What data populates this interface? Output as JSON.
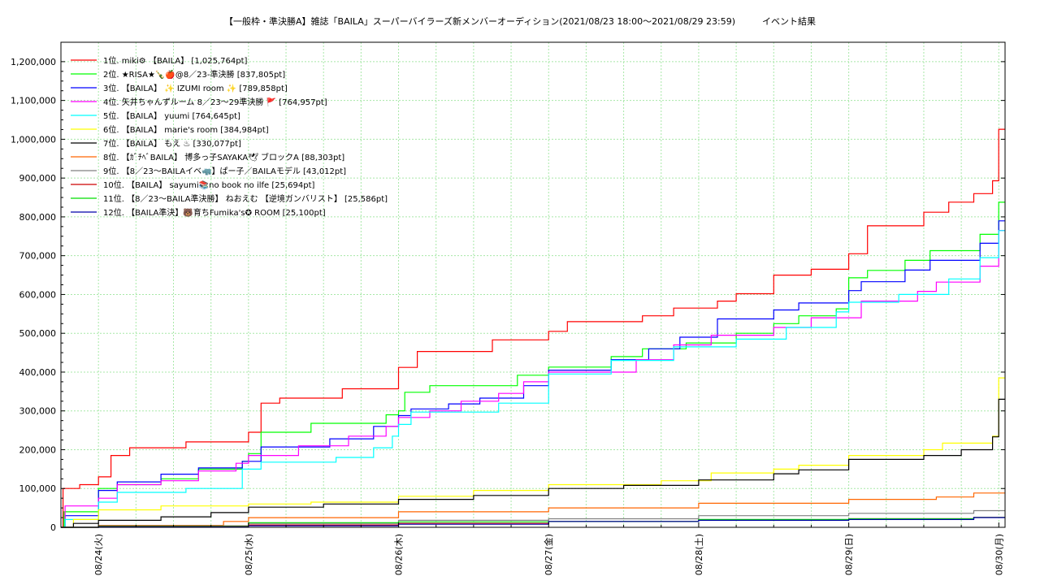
{
  "chart_data": {
    "type": "line",
    "title": "【一般枠・準決勝A】雑誌「BAILA」スーパーバイラーズ新メンバーオーディション(2021/08/23 18:00〜2021/08/29 23:59)　　　イベント結果",
    "xlabel": "",
    "ylabel": "",
    "x_ticks": [
      "08/24(火)",
      "08/25(水)",
      "08/26(木)",
      "08/27(金)",
      "08/28(土)",
      "08/29(日)",
      "08/30(月)"
    ],
    "xlim": [
      "2021-08-23 18:00",
      "2021-08-30 01:00"
    ],
    "ylim": [
      0,
      1250000
    ],
    "y_ticks": [
      "0",
      "100,000",
      "200,000",
      "300,000",
      "400,000",
      "500,000",
      "600,000",
      "700,000",
      "800,000",
      "900,000",
      "1,000,000",
      "1,100,000",
      "1,200,000"
    ],
    "grid": true,
    "legend_position": "top-left",
    "series": [
      {
        "name": "1位. miki⚙ 【BAILA】 [1,025,764pt]",
        "color": "#ff0000",
        "points": [
          [
            "08-23 18:00",
            0
          ],
          [
            "08-23 18:20",
            100000
          ],
          [
            "08-23 21:00",
            110000
          ],
          [
            "08-24 00:00",
            130000
          ],
          [
            "08-24 02:00",
            185000
          ],
          [
            "08-24 05:00",
            205000
          ],
          [
            "08-24 14:00",
            220000
          ],
          [
            "08-25 00:00",
            245000
          ],
          [
            "08-25 02:00",
            320000
          ],
          [
            "08-25 05:00",
            333000
          ],
          [
            "08-25 15:00",
            357000
          ],
          [
            "08-26 00:00",
            412000
          ],
          [
            "08-26 03:00",
            453000
          ],
          [
            "08-26 15:00",
            483000
          ],
          [
            "08-27 00:00",
            505000
          ],
          [
            "08-27 03:00",
            530000
          ],
          [
            "08-27 15:00",
            545000
          ],
          [
            "08-27 20:00",
            565000
          ],
          [
            "08-28 03:00",
            583000
          ],
          [
            "08-28 06:00",
            602000
          ],
          [
            "08-28 12:00",
            650000
          ],
          [
            "08-28 18:00",
            665000
          ],
          [
            "08-29 00:00",
            705000
          ],
          [
            "08-29 03:00",
            777000
          ],
          [
            "08-29 12:00",
            812000
          ],
          [
            "08-29 16:00",
            838000
          ],
          [
            "08-29 20:00",
            860000
          ],
          [
            "08-29 23:00",
            893000
          ],
          [
            "08-29 23:59",
            1025764
          ],
          [
            "08-30 01:00",
            1025764
          ]
        ]
      },
      {
        "name": "2位. ★RISA★🍾🍎@8／23-準決勝 [837,805pt]",
        "color": "#00ff00",
        "points": [
          [
            "08-23 18:00",
            0
          ],
          [
            "08-23 18:30",
            40000
          ],
          [
            "08-24 00:00",
            100000
          ],
          [
            "08-24 03:00",
            110000
          ],
          [
            "08-24 10:00",
            125000
          ],
          [
            "08-24 16:00",
            150000
          ],
          [
            "08-24 23:00",
            170000
          ],
          [
            "08-25 00:00",
            190000
          ],
          [
            "08-25 02:00",
            245000
          ],
          [
            "08-25 10:00",
            268000
          ],
          [
            "08-25 22:00",
            290000
          ],
          [
            "08-26 00:00",
            300000
          ],
          [
            "08-26 01:00",
            348000
          ],
          [
            "08-26 05:00",
            365000
          ],
          [
            "08-26 19:00",
            392000
          ],
          [
            "08-27 00:00",
            413000
          ],
          [
            "08-27 10:00",
            440000
          ],
          [
            "08-27 15:00",
            460000
          ],
          [
            "08-27 22:00",
            475000
          ],
          [
            "08-28 06:00",
            500000
          ],
          [
            "08-28 12:00",
            525000
          ],
          [
            "08-28 16:00",
            545000
          ],
          [
            "08-28 22:00",
            563000
          ],
          [
            "08-29 00:00",
            643000
          ],
          [
            "08-29 03:00",
            662000
          ],
          [
            "08-29 09:00",
            688000
          ],
          [
            "08-29 13:00",
            713000
          ],
          [
            "08-29 21:00",
            755000
          ],
          [
            "08-29 23:59",
            837805
          ],
          [
            "08-30 01:00",
            837805
          ]
        ]
      },
      {
        "name": "3位. 【BAILA】 ✨ IZUMI room ✨ [789,858pt]",
        "color": "#0000ff",
        "points": [
          [
            "08-23 18:00",
            0
          ],
          [
            "08-23 18:40",
            30000
          ],
          [
            "08-24 00:00",
            95000
          ],
          [
            "08-24 03:00",
            117000
          ],
          [
            "08-24 10:00",
            137000
          ],
          [
            "08-24 16:00",
            153000
          ],
          [
            "08-24 23:00",
            170000
          ],
          [
            "08-25 02:00",
            207000
          ],
          [
            "08-25 13:00",
            228000
          ],
          [
            "08-25 20:00",
            260000
          ],
          [
            "08-26 00:00",
            288000
          ],
          [
            "08-26 02:00",
            305000
          ],
          [
            "08-26 08:00",
            318000
          ],
          [
            "08-26 13:00",
            333000
          ],
          [
            "08-26 20:00",
            365000
          ],
          [
            "08-27 00:00",
            405000
          ],
          [
            "08-27 10:00",
            432000
          ],
          [
            "08-27 16:00",
            460000
          ],
          [
            "08-27 21:00",
            490000
          ],
          [
            "08-28 03:00",
            537000
          ],
          [
            "08-28 12:00",
            560000
          ],
          [
            "08-28 16:00",
            578000
          ],
          [
            "08-29 00:00",
            610000
          ],
          [
            "08-29 02:00",
            633000
          ],
          [
            "08-29 09:00",
            663000
          ],
          [
            "08-29 13:00",
            688000
          ],
          [
            "08-29 21:00",
            732000
          ],
          [
            "08-29 23:59",
            789858
          ],
          [
            "08-30 01:00",
            789858
          ]
        ]
      },
      {
        "name": "4位. 矢井ちゃんずルーム 8／23〜29準決勝 🚩 [764,957pt]",
        "color": "#ff00ff",
        "points": [
          [
            "08-23 18:00",
            0
          ],
          [
            "08-23 18:40",
            55000
          ],
          [
            "08-24 00:00",
            75000
          ],
          [
            "08-24 03:00",
            110000
          ],
          [
            "08-24 10:00",
            120000
          ],
          [
            "08-24 16:00",
            145000
          ],
          [
            "08-24 22:00",
            165000
          ],
          [
            "08-25 00:00",
            185000
          ],
          [
            "08-25 08:00",
            210000
          ],
          [
            "08-25 16:00",
            235000
          ],
          [
            "08-25 22:00",
            260000
          ],
          [
            "08-26 00:00",
            283000
          ],
          [
            "08-26 05:00",
            300000
          ],
          [
            "08-26 10:00",
            325000
          ],
          [
            "08-26 16:00",
            345000
          ],
          [
            "08-26 20:00",
            375000
          ],
          [
            "08-27 00:00",
            400000
          ],
          [
            "08-27 08:00",
            400000
          ],
          [
            "08-27 14:00",
            432000
          ],
          [
            "08-27 20:00",
            470000
          ],
          [
            "08-28 02:00",
            495000
          ],
          [
            "08-28 12:00",
            515000
          ],
          [
            "08-28 18:00",
            540000
          ],
          [
            "08-29 02:00",
            583000
          ],
          [
            "08-29 11:00",
            608000
          ],
          [
            "08-29 14:00",
            632000
          ],
          [
            "08-29 21:00",
            673000
          ],
          [
            "08-29 23:59",
            764957
          ],
          [
            "08-30 01:00",
            764957
          ]
        ]
      },
      {
        "name": "5位. 【BAILA】 yuumi [764,645pt]",
        "color": "#00ffff",
        "points": [
          [
            "08-23 18:00",
            0
          ],
          [
            "08-23 18:40",
            20000
          ],
          [
            "08-24 00:00",
            65000
          ],
          [
            "08-24 03:00",
            90000
          ],
          [
            "08-24 14:00",
            100000
          ],
          [
            "08-24 23:00",
            150000
          ],
          [
            "08-25 02:00",
            168000
          ],
          [
            "08-25 14:00",
            180000
          ],
          [
            "08-25 20:00",
            205000
          ],
          [
            "08-25 23:00",
            235000
          ],
          [
            "08-26 00:00",
            265000
          ],
          [
            "08-26 02:00",
            297000
          ],
          [
            "08-26 16:00",
            320000
          ],
          [
            "08-27 00:00",
            395000
          ],
          [
            "08-27 10:00",
            430000
          ],
          [
            "08-27 20:00",
            465000
          ],
          [
            "08-28 06:00",
            485000
          ],
          [
            "08-28 14:00",
            515000
          ],
          [
            "08-28 22:00",
            555000
          ],
          [
            "08-29 00:00",
            580000
          ],
          [
            "08-29 08:00",
            600000
          ],
          [
            "08-29 16:00",
            640000
          ],
          [
            "08-29 21:00",
            695000
          ],
          [
            "08-29 23:59",
            764645
          ],
          [
            "08-30 01:00",
            764645
          ]
        ]
      },
      {
        "name": "6位. 【BAILA】 marie's room [384,984pt]",
        "color": "#ffff00",
        "points": [
          [
            "08-23 18:00",
            0
          ],
          [
            "08-23 20:00",
            20000
          ],
          [
            "08-24 00:00",
            45000
          ],
          [
            "08-24 10:00",
            55000
          ],
          [
            "08-25 00:00",
            60000
          ],
          [
            "08-25 10:00",
            65000
          ],
          [
            "08-26 00:00",
            80000
          ],
          [
            "08-26 12:00",
            95000
          ],
          [
            "08-27 00:00",
            110000
          ],
          [
            "08-27 18:00",
            120000
          ],
          [
            "08-28 02:00",
            140000
          ],
          [
            "08-28 12:00",
            150000
          ],
          [
            "08-28 16:00",
            160000
          ],
          [
            "08-29 00:00",
            185000
          ],
          [
            "08-29 12:00",
            200000
          ],
          [
            "08-29 15:00",
            217000
          ],
          [
            "08-29 23:00",
            235000
          ],
          [
            "08-29 23:59",
            384984
          ],
          [
            "08-30 01:00",
            384984
          ]
        ]
      },
      {
        "name": "7位. 【BAILA】 もえ ♨ [330,077pt]",
        "color": "#000000",
        "points": [
          [
            "08-23 18:00",
            0
          ],
          [
            "08-23 20:00",
            10000
          ],
          [
            "08-24 00:00",
            18000
          ],
          [
            "08-24 10:00",
            27000
          ],
          [
            "08-24 18:00",
            38000
          ],
          [
            "08-25 00:00",
            52000
          ],
          [
            "08-25 12:00",
            60000
          ],
          [
            "08-26 00:00",
            72000
          ],
          [
            "08-26 12:00",
            82000
          ],
          [
            "08-27 00:00",
            100000
          ],
          [
            "08-27 12:00",
            108000
          ],
          [
            "08-28 00:00",
            122000
          ],
          [
            "08-28 12:00",
            138000
          ],
          [
            "08-28 16:00",
            148000
          ],
          [
            "08-29 00:00",
            175000
          ],
          [
            "08-29 12:00",
            185000
          ],
          [
            "08-29 18:00",
            200000
          ],
          [
            "08-29 23:00",
            233000
          ],
          [
            "08-29 23:59",
            330077
          ],
          [
            "08-30 01:00",
            330077
          ]
        ]
      },
      {
        "name": "8位. 【ｶﾞﾁﾍﾞBAILA】 博多っ子SAYAKA🕊 ブロックA [88,303pt]",
        "color": "#ff6600",
        "points": [
          [
            "08-23 18:00",
            0
          ],
          [
            "08-24 00:00",
            5000
          ],
          [
            "08-24 20:00",
            15000
          ],
          [
            "08-25 00:00",
            25000
          ],
          [
            "08-26 00:00",
            40000
          ],
          [
            "08-27 00:00",
            50000
          ],
          [
            "08-28 00:00",
            62000
          ],
          [
            "08-29 00:00",
            72000
          ],
          [
            "08-29 14:00",
            78000
          ],
          [
            "08-29 20:00",
            88303
          ],
          [
            "08-30 01:00",
            88303
          ]
        ]
      },
      {
        "name": "9位. 【8／23〜BAILAイベ🦏】ぱー子／BAILAモデル [43,012pt]",
        "color": "#808080",
        "points": [
          [
            "08-23 18:00",
            0
          ],
          [
            "08-24 00:00",
            4000
          ],
          [
            "08-25 00:00",
            10000
          ],
          [
            "08-26 00:00",
            18000
          ],
          [
            "08-27 00:00",
            22000
          ],
          [
            "08-28 00:00",
            30000
          ],
          [
            "08-29 00:00",
            36000
          ],
          [
            "08-29 20:00",
            43012
          ],
          [
            "08-30 01:00",
            43012
          ]
        ]
      },
      {
        "name": "10位. 【BAILA】 sayumi📚no book no ilfe [25,694pt]",
        "color": "#cc0000",
        "points": [
          [
            "08-23 18:00",
            0
          ],
          [
            "08-24 00:00",
            3000
          ],
          [
            "08-25 00:00",
            6000
          ],
          [
            "08-26 00:00",
            10000
          ],
          [
            "08-27 00:00",
            15000
          ],
          [
            "08-28 00:00",
            19000
          ],
          [
            "08-29 00:00",
            22000
          ],
          [
            "08-29 20:00",
            25694
          ],
          [
            "08-30 01:00",
            25694
          ]
        ]
      },
      {
        "name": "11位. 【8／23〜BAILA準決勝】 ねおえむ 【逆境ガンバリスト】 [25,586pt]",
        "color": "#00dd00",
        "points": [
          [
            "08-23 18:00",
            0
          ],
          [
            "08-24 00:00",
            2000
          ],
          [
            "08-25 00:00",
            12000
          ],
          [
            "08-26 00:00",
            14000
          ],
          [
            "08-27 00:00",
            15000
          ],
          [
            "08-28 00:00",
            20000
          ],
          [
            "08-29 00:00",
            22000
          ],
          [
            "08-29 20:00",
            25586
          ],
          [
            "08-30 01:00",
            25586
          ]
        ]
      },
      {
        "name": "12位. 【BAILA準決】🐻育ちFumika's✪ ROOM [25,100pt]",
        "color": "#0000aa",
        "points": [
          [
            "08-23 18:00",
            0
          ],
          [
            "08-24 00:00",
            1000
          ],
          [
            "08-25 00:00",
            4000
          ],
          [
            "08-26 00:00",
            8000
          ],
          [
            "08-27 00:00",
            15000
          ],
          [
            "08-28 00:00",
            18000
          ],
          [
            "08-29 00:00",
            20000
          ],
          [
            "08-29 20:00",
            25100
          ],
          [
            "08-30 01:00",
            25100
          ]
        ]
      }
    ]
  }
}
